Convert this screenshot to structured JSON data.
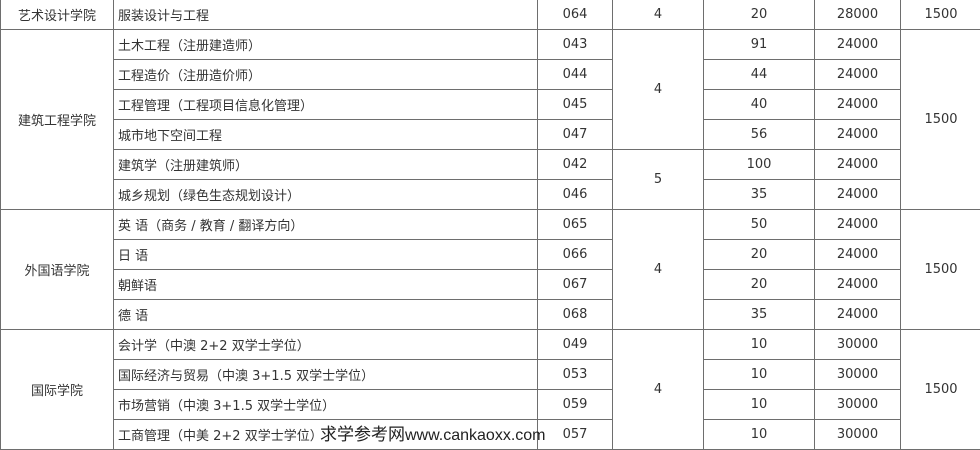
{
  "groups": [
    {
      "college": "艺术设计学院",
      "fee_housing": "1500",
      "rows": [
        {
          "major": "服装设计与工程",
          "code": "064",
          "years": "4",
          "plan": "20",
          "tuition": "28000"
        }
      ],
      "years_spans": [
        {
          "value": "4",
          "count": 1
        }
      ]
    },
    {
      "college": "建筑工程学院",
      "fee_housing": "1500",
      "rows": [
        {
          "major": "土木工程（注册建造师）",
          "code": "043",
          "plan": "91",
          "tuition": "24000"
        },
        {
          "major": "工程造价（注册造价师）",
          "code": "044",
          "plan": "44",
          "tuition": "24000"
        },
        {
          "major": "工程管理（工程项目信息化管理）",
          "code": "045",
          "plan": "40",
          "tuition": "24000"
        },
        {
          "major": "城市地下空间工程",
          "code": "047",
          "plan": "56",
          "tuition": "24000"
        },
        {
          "major": "建筑学（注册建筑师）",
          "code": "042",
          "plan": "100",
          "tuition": "24000"
        },
        {
          "major": "城乡规划（绿色生态规划设计）",
          "code": "046",
          "plan": "35",
          "tuition": "24000"
        }
      ],
      "years_spans": [
        {
          "value": "4",
          "count": 4
        },
        {
          "value": "5",
          "count": 2
        }
      ]
    },
    {
      "college": "外国语学院",
      "fee_housing": "1500",
      "rows": [
        {
          "major": "英 语（商务 / 教育 / 翻译方向）",
          "code": "065",
          "plan": "50",
          "tuition": "24000"
        },
        {
          "major": "日 语",
          "code": "066",
          "plan": "20",
          "tuition": "24000"
        },
        {
          "major": "朝鲜语",
          "code": "067",
          "plan": "20",
          "tuition": "24000"
        },
        {
          "major": "德 语",
          "code": "068",
          "plan": "35",
          "tuition": "24000"
        }
      ],
      "years_spans": [
        {
          "value": "4",
          "count": 4
        }
      ]
    },
    {
      "college": "国际学院",
      "fee_housing": "1500",
      "rows": [
        {
          "major": "会计学（中澳 2+2 双学士学位）",
          "code": "049",
          "plan": "10",
          "tuition": "30000"
        },
        {
          "major": "国际经济与贸易（中澳 3+1.5 双学士学位）",
          "code": "053",
          "plan": "10",
          "tuition": "30000"
        },
        {
          "major": "市场营销（中澳 3+1.5 双学士学位）",
          "code": "059",
          "plan": "10",
          "tuition": "30000"
        },
        {
          "major": "工商管理（中美 2+2 双学士学位）",
          "code": "057",
          "plan": "10",
          "tuition": "30000"
        }
      ],
      "years_spans": [
        {
          "value": "4",
          "count": 4
        }
      ]
    }
  ],
  "watermark": {
    "cn": "求学参考网",
    "url": "www.cankaoxx.com"
  }
}
